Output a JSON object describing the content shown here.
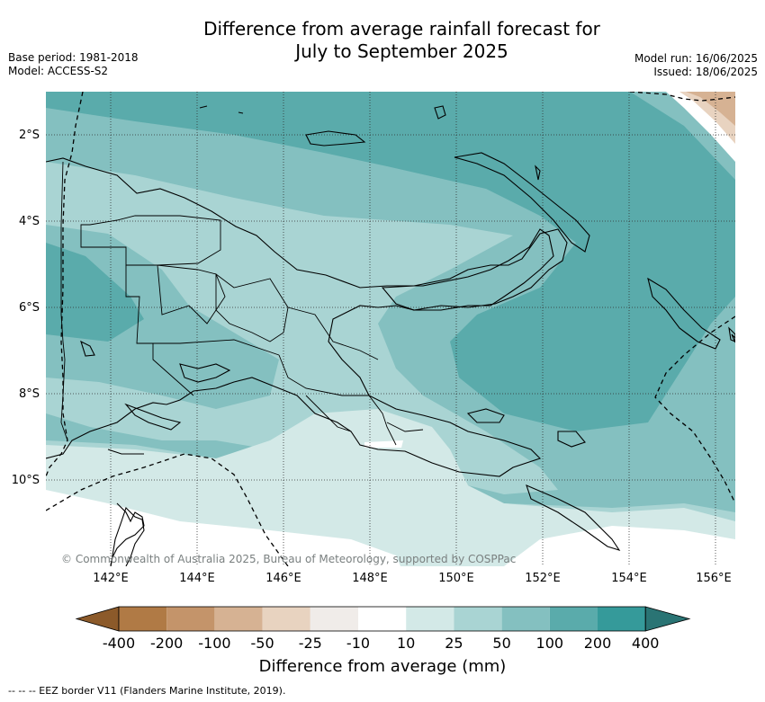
{
  "title_line1": "Difference from average rainfall forecast for",
  "title_line2": "July to September 2025",
  "base_period": "Base period: 1981-2018",
  "model": "Model: ACCESS-S2",
  "model_run": "Model run: 16/06/2025",
  "issued": "Issued: 18/06/2025",
  "lat_labels": [
    "2°S",
    "4°S",
    "6°S",
    "8°S",
    "10°S"
  ],
  "lon_labels": [
    "142°E",
    "144°E",
    "146°E",
    "148°E",
    "150°E",
    "152°E",
    "154°E",
    "156°E"
  ],
  "copyright": "© Commonwealth of Australia 2025, Bureau of Meteorology, supported by COSPPac",
  "colorbar": {
    "ticks": [
      "-400",
      "-200",
      "-100",
      "-50",
      "-25",
      "-10",
      "10",
      "25",
      "50",
      "100",
      "200",
      "400"
    ],
    "colors": [
      "#8c5a2a",
      "#b07a45",
      "#c4946a",
      "#d6b293",
      "#e8d3c0",
      "#f0ece9",
      "#ffffff",
      "#d3e9e7",
      "#a9d4d3",
      "#84c0c0",
      "#5aabab",
      "#359a9a",
      "#2a7474"
    ],
    "title": "Difference from average (mm)"
  },
  "eez_note": "--  --  -- EEZ border V11 (Flanders Marine Institute, 2019).",
  "regions": {
    "water": "#ffffff",
    "c10_25": "#d3e9e7",
    "c25_50": "#a9d4d3",
    "c50_100": "#84c0c0",
    "c100_200": "#5aabab",
    "dry_light": "#e8d3c0",
    "dry_med": "#d6b293"
  }
}
